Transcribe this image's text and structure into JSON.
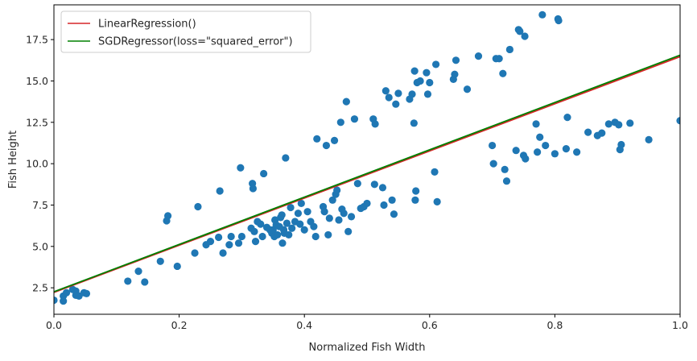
{
  "chart_data": {
    "type": "scatter",
    "title": "",
    "xlabel": "Normalized Fish Width",
    "ylabel": "Fish Height",
    "xlim": [
      0,
      1.0
    ],
    "ylim": [
      0.9,
      19.6
    ],
    "xticks": [
      0.0,
      0.2,
      0.4,
      0.6,
      0.8,
      1.0
    ],
    "xtick_labels": [
      "0.0",
      "0.2",
      "0.4",
      "0.6",
      "0.8",
      "1.0"
    ],
    "yticks": [
      2.5,
      5.0,
      7.5,
      10.0,
      12.5,
      15.0,
      17.5
    ],
    "ytick_labels": [
      "2.5",
      "5.0",
      "7.5",
      "10.0",
      "12.5",
      "15.0",
      "17.5"
    ],
    "grid": false,
    "legend_position": "top-left",
    "point_color": "#1f77b4",
    "series": [
      {
        "name": "LinearRegression()",
        "kind": "line",
        "color": "#d62728",
        "x": [
          0.0,
          1.0
        ],
        "y": [
          2.22,
          16.47
        ]
      },
      {
        "name": "SGDRegressor(loss=\"squared_error\")",
        "kind": "line",
        "color": "#008000",
        "x": [
          0.0,
          1.0
        ],
        "y": [
          2.26,
          16.56
        ]
      }
    ],
    "points": [
      [
        0.0,
        1.75
      ],
      [
        0.015,
        1.7
      ],
      [
        0.015,
        2.0
      ],
      [
        0.02,
        2.2
      ],
      [
        0.03,
        2.4
      ],
      [
        0.035,
        2.3
      ],
      [
        0.035,
        2.05
      ],
      [
        0.04,
        2.0
      ],
      [
        0.048,
        2.2
      ],
      [
        0.052,
        2.15
      ],
      [
        0.118,
        2.9
      ],
      [
        0.135,
        3.5
      ],
      [
        0.145,
        2.85
      ],
      [
        0.17,
        4.1
      ],
      [
        0.18,
        6.55
      ],
      [
        0.182,
        6.85
      ],
      [
        0.197,
        3.8
      ],
      [
        0.225,
        4.6
      ],
      [
        0.23,
        7.4
      ],
      [
        0.243,
        5.1
      ],
      [
        0.25,
        5.3
      ],
      [
        0.263,
        5.55
      ],
      [
        0.265,
        8.35
      ],
      [
        0.27,
        4.6
      ],
      [
        0.28,
        5.1
      ],
      [
        0.283,
        5.6
      ],
      [
        0.295,
        5.2
      ],
      [
        0.298,
        9.75
      ],
      [
        0.3,
        5.6
      ],
      [
        0.315,
        6.1
      ],
      [
        0.317,
        8.8
      ],
      [
        0.318,
        8.5
      ],
      [
        0.32,
        5.9
      ],
      [
        0.322,
        5.3
      ],
      [
        0.325,
        6.5
      ],
      [
        0.33,
        6.35
      ],
      [
        0.333,
        5.6
      ],
      [
        0.335,
        9.4
      ],
      [
        0.34,
        6.15
      ],
      [
        0.345,
        6.0
      ],
      [
        0.348,
        5.8
      ],
      [
        0.35,
        6.0
      ],
      [
        0.352,
        5.6
      ],
      [
        0.353,
        6.6
      ],
      [
        0.355,
        6.3
      ],
      [
        0.357,
        5.7
      ],
      [
        0.36,
        6.2
      ],
      [
        0.362,
        6.75
      ],
      [
        0.364,
        6.9
      ],
      [
        0.365,
        5.2
      ],
      [
        0.367,
        6.0
      ],
      [
        0.368,
        5.8
      ],
      [
        0.37,
        10.35
      ],
      [
        0.372,
        6.4
      ],
      [
        0.375,
        5.7
      ],
      [
        0.378,
        7.35
      ],
      [
        0.38,
        6.1
      ],
      [
        0.385,
        6.5
      ],
      [
        0.39,
        7.0
      ],
      [
        0.393,
        6.35
      ],
      [
        0.395,
        7.6
      ],
      [
        0.4,
        6.0
      ],
      [
        0.405,
        7.1
      ],
      [
        0.41,
        6.5
      ],
      [
        0.415,
        6.2
      ],
      [
        0.418,
        5.6
      ],
      [
        0.42,
        11.5
      ],
      [
        0.43,
        7.4
      ],
      [
        0.432,
        7.1
      ],
      [
        0.435,
        11.1
      ],
      [
        0.44,
        6.7
      ],
      [
        0.438,
        5.7
      ],
      [
        0.445,
        7.8
      ],
      [
        0.448,
        11.4
      ],
      [
        0.45,
        8.15
      ],
      [
        0.452,
        8.4
      ],
      [
        0.455,
        6.6
      ],
      [
        0.458,
        12.5
      ],
      [
        0.46,
        7.25
      ],
      [
        0.463,
        7.0
      ],
      [
        0.467,
        13.75
      ],
      [
        0.47,
        5.9
      ],
      [
        0.475,
        6.8
      ],
      [
        0.48,
        12.7
      ],
      [
        0.485,
        8.8
      ],
      [
        0.49,
        7.3
      ],
      [
        0.495,
        7.4
      ],
      [
        0.5,
        7.6
      ],
      [
        0.51,
        12.7
      ],
      [
        0.512,
        8.75
      ],
      [
        0.513,
        12.4
      ],
      [
        0.525,
        8.55
      ],
      [
        0.527,
        7.5
      ],
      [
        0.53,
        14.4
      ],
      [
        0.535,
        14.0
      ],
      [
        0.54,
        7.8
      ],
      [
        0.543,
        6.95
      ],
      [
        0.546,
        13.6
      ],
      [
        0.55,
        14.25
      ],
      [
        0.568,
        13.9
      ],
      [
        0.572,
        14.2
      ],
      [
        0.575,
        12.45
      ],
      [
        0.576,
        15.6
      ],
      [
        0.577,
        7.8
      ],
      [
        0.578,
        8.35
      ],
      [
        0.58,
        14.9
      ],
      [
        0.585,
        15.0
      ],
      [
        0.595,
        15.5
      ],
      [
        0.597,
        14.2
      ],
      [
        0.6,
        14.9
      ],
      [
        0.608,
        9.5
      ],
      [
        0.61,
        16.0
      ],
      [
        0.612,
        7.7
      ],
      [
        0.638,
        15.1
      ],
      [
        0.64,
        15.4
      ],
      [
        0.642,
        16.25
      ],
      [
        0.66,
        14.5
      ],
      [
        0.678,
        16.5
      ],
      [
        0.7,
        11.1
      ],
      [
        0.702,
        10.0
      ],
      [
        0.706,
        16.35
      ],
      [
        0.711,
        16.35
      ],
      [
        0.717,
        15.45
      ],
      [
        0.72,
        9.65
      ],
      [
        0.723,
        8.95
      ],
      [
        0.728,
        16.9
      ],
      [
        0.738,
        10.8
      ],
      [
        0.742,
        18.1
      ],
      [
        0.744,
        18.0
      ],
      [
        0.75,
        10.5
      ],
      [
        0.752,
        17.7
      ],
      [
        0.753,
        10.3
      ],
      [
        0.77,
        12.4
      ],
      [
        0.772,
        10.7
      ],
      [
        0.776,
        11.6
      ],
      [
        0.78,
        19.0
      ],
      [
        0.785,
        11.1
      ],
      [
        0.8,
        10.6
      ],
      [
        0.805,
        18.75
      ],
      [
        0.806,
        18.65
      ],
      [
        0.818,
        10.9
      ],
      [
        0.82,
        12.8
      ],
      [
        0.835,
        10.7
      ],
      [
        0.853,
        11.9
      ],
      [
        0.868,
        11.7
      ],
      [
        0.875,
        11.85
      ],
      [
        0.886,
        12.4
      ],
      [
        0.896,
        12.5
      ],
      [
        0.902,
        12.35
      ],
      [
        0.904,
        10.85
      ],
      [
        0.906,
        11.15
      ],
      [
        0.92,
        12.45
      ],
      [
        0.95,
        11.45
      ],
      [
        1.0,
        12.6
      ]
    ]
  }
}
